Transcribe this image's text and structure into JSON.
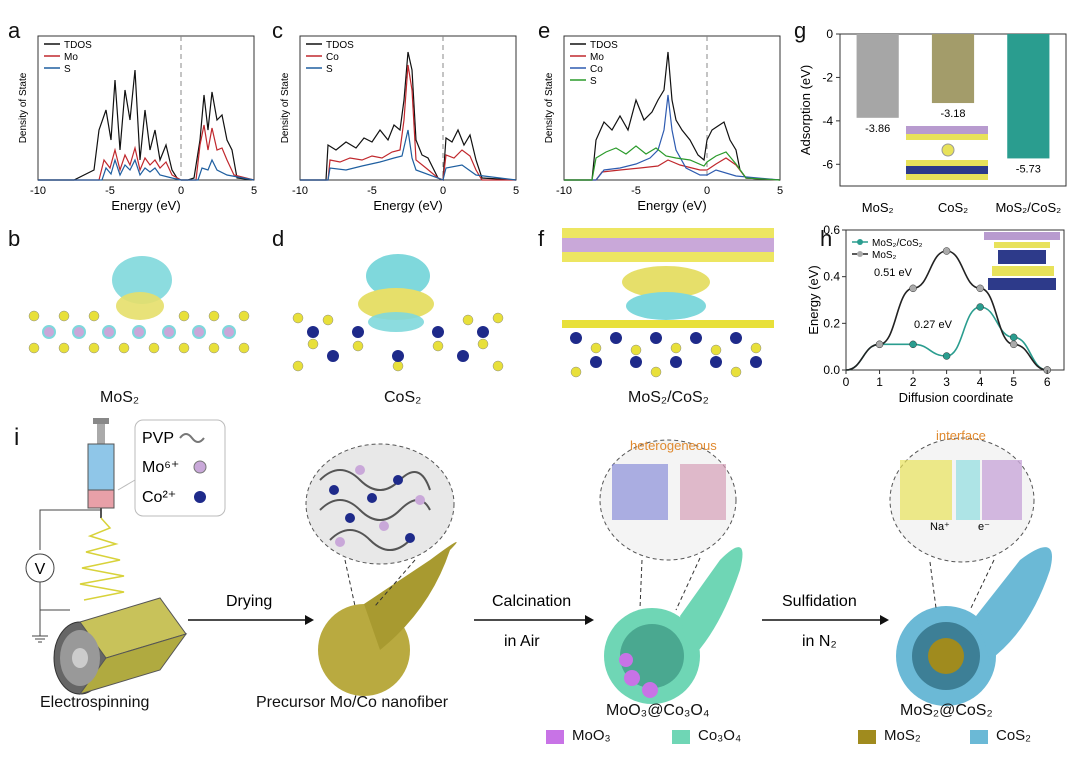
{
  "panels": {
    "a": {
      "label": "a",
      "ylabel": "Density of State",
      "xlabel": "Energy (eV)",
      "xticks": [
        "-10",
        "-5",
        "0",
        "5"
      ],
      "legend": [
        "TDOS",
        "Mo",
        "S"
      ]
    },
    "c": {
      "label": "c",
      "ylabel": "Density of State",
      "xlabel": "Energy (eV)",
      "xticks": [
        "-10",
        "-5",
        "0",
        "5"
      ],
      "legend": [
        "TDOS",
        "Co",
        "S"
      ]
    },
    "e": {
      "label": "e",
      "ylabel": "Density of State",
      "xlabel": "Energy (eV)",
      "xticks": [
        "-10",
        "-5",
        "0",
        "5"
      ],
      "legend": [
        "TDOS",
        "Mo",
        "Co",
        "S"
      ]
    },
    "b": {
      "label": "b",
      "caption": "MoS₂"
    },
    "d": {
      "label": "d",
      "caption": "CoS₂"
    },
    "f": {
      "label": "f",
      "caption": "MoS₂/CoS₂"
    },
    "i": {
      "label": "i",
      "legend_inset": [
        "PVP",
        "Mo⁶⁺",
        "Co²⁺"
      ],
      "steps": [
        "Drying",
        "Calcination",
        "in Air",
        "Sulfidation",
        "in N₂"
      ],
      "stage_labels": [
        "Electrospinning",
        "Precursor Mo/Co nanofiber",
        "MoO₃@Co₃O₄",
        "MoS₂@CoS₂"
      ],
      "zoom_labels": [
        "heterogeneous",
        "interface",
        "Na⁺",
        "e⁻"
      ],
      "material_legend": [
        "MoO₃",
        "Co₃O₄",
        "MoS₂",
        "CoS₂"
      ],
      "voltage": "V"
    }
  },
  "colors": {
    "tdos": "#111111",
    "mo": "#c0282d",
    "s": "#1f5fa0",
    "co_e": "#2e5bb0",
    "s_e": "#2a9a2a",
    "teal": "#2a9d8f",
    "gray_bar": "#a6a6a6",
    "olive_bar": "#a39c6a",
    "moo3": "#c873e6",
    "co3o4": "#6fd6b5",
    "mos2": "#a08b1e",
    "cos2": "#6bb9d6"
  },
  "chart_data": [
    {
      "type": "bar",
      "panel": "g",
      "label": "g",
      "categories": [
        "MoS₂",
        "CoS₂",
        "MoS₂/CoS₂"
      ],
      "values": [
        -3.86,
        -3.18,
        -5.73
      ],
      "value_labels": [
        "-3.86",
        "-3.18",
        "-5.73"
      ],
      "ylabel": "Adsorption (eV)",
      "ylim": [
        -7,
        0
      ],
      "yticks": [
        "0",
        "-2",
        "-4",
        "-6"
      ]
    },
    {
      "type": "line",
      "panel": "h",
      "label": "h",
      "xlabel": "Diffusion coordinate",
      "ylabel": "Energy (eV)",
      "xlim": [
        0,
        6.5
      ],
      "ylim": [
        0,
        0.6
      ],
      "xticks": [
        "0",
        "1",
        "2",
        "3",
        "4",
        "5",
        "6"
      ],
      "yticks": [
        "0.0",
        "0.2",
        "0.4",
        "0.6"
      ],
      "series": [
        {
          "name": "MoS₂/CoS₂",
          "x": [
            1,
            2,
            3,
            4,
            5,
            6
          ],
          "y": [
            0.11,
            0.11,
            0.06,
            0.27,
            0.14,
            0.0
          ]
        },
        {
          "name": "MoS₂",
          "x": [
            1,
            2,
            3,
            4,
            5,
            6
          ],
          "y": [
            0.11,
            0.35,
            0.51,
            0.35,
            0.11,
            0.0
          ]
        }
      ],
      "annotations": [
        "0.51 eV",
        "0.27 eV"
      ]
    }
  ]
}
